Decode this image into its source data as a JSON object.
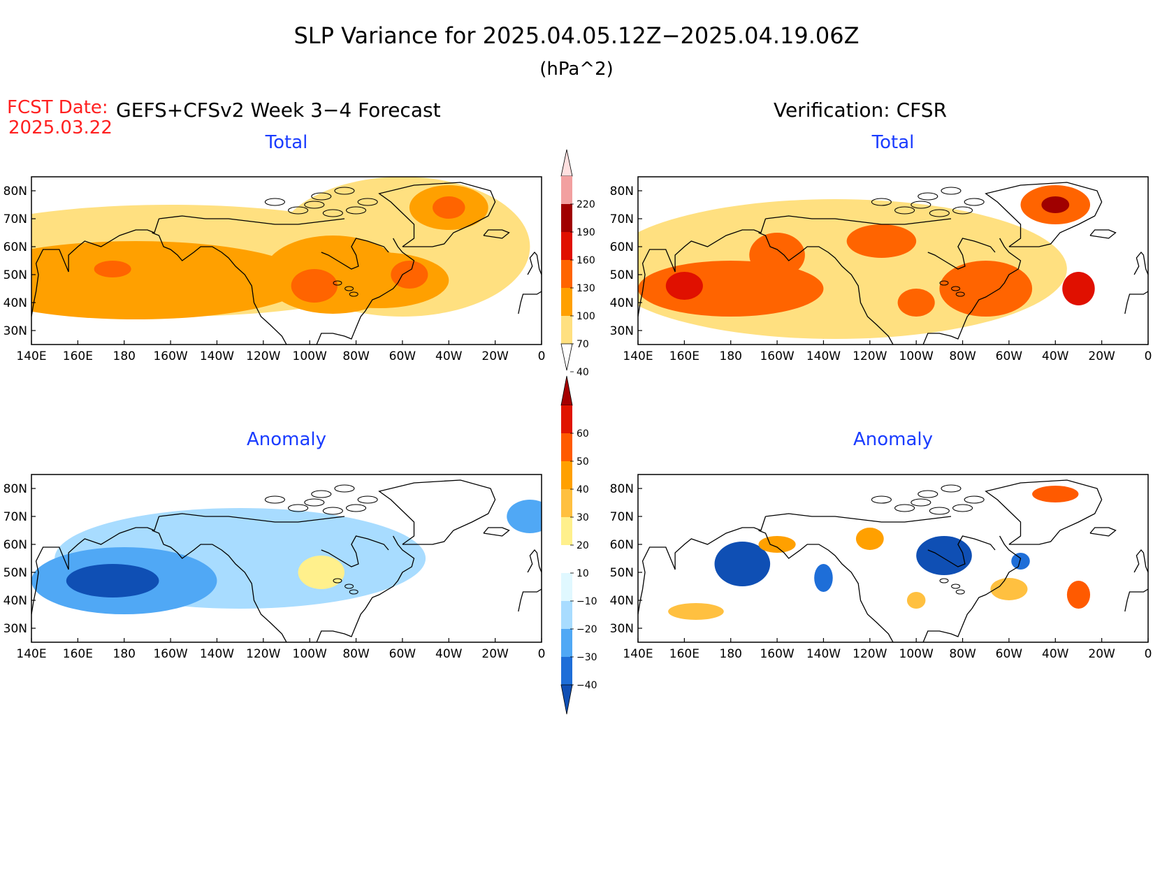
{
  "title": "SLP Variance for 2025.04.05.12Z−2025.04.19.06Z",
  "units": "(hPa^2)",
  "fcst_label": "FCST Date:",
  "fcst_date": "2025.03.22",
  "left_header": "GEFS+CFSv2 Week 3−4 Forecast",
  "right_header": "Verification: CFSR",
  "lon_labels": [
    "140E",
    "160E",
    "180",
    "160W",
    "140W",
    "120W",
    "100W",
    "80W",
    "60W",
    "40W",
    "20W",
    "0"
  ],
  "lat_labels": [
    "80N",
    "70N",
    "60N",
    "50N",
    "40N",
    "30N"
  ],
  "panels": [
    {
      "title": "Total",
      "scale": "total",
      "blobs": [
        {
          "lon": 185,
          "lat": 48,
          "rlon": 75,
          "rlat": 14,
          "v": 72
        },
        {
          "lon": 180,
          "lat": 50,
          "rlon": 45,
          "rlat": 8,
          "v": 90
        },
        {
          "lon": 175,
          "lat": 52,
          "rlon": 8,
          "rlat": 3,
          "v": 102
        },
        {
          "lon": 270,
          "lat": 50,
          "rlon": 30,
          "rlat": 14,
          "v": 78
        },
        {
          "lon": 262,
          "lat": 46,
          "rlon": 10,
          "rlat": 6,
          "v": 102
        },
        {
          "lon": 290,
          "lat": 48,
          "rlon": 30,
          "rlat": 10,
          "v": 76
        },
        {
          "lon": 303,
          "lat": 50,
          "rlon": 8,
          "rlat": 5,
          "v": 100
        },
        {
          "lon": 320,
          "lat": 74,
          "rlon": 17,
          "rlat": 8,
          "v": 82
        },
        {
          "lon": 320,
          "lat": 74,
          "rlon": 7,
          "rlat": 4,
          "v": 112
        },
        {
          "lon": 200,
          "lat": 55,
          "rlon": 110,
          "rlat": 20,
          "v": 44
        },
        {
          "lon": 300,
          "lat": 60,
          "rlon": 55,
          "rlat": 25,
          "v": 44
        }
      ]
    },
    {
      "title": "Total",
      "scale": "total",
      "blobs": [
        {
          "lon": 180,
          "lat": 45,
          "rlon": 40,
          "rlat": 10,
          "v": 100
        },
        {
          "lon": 160,
          "lat": 46,
          "rlon": 8,
          "rlat": 5,
          "v": 130
        },
        {
          "lon": 200,
          "lat": 57,
          "rlon": 12,
          "rlat": 8,
          "v": 110
        },
        {
          "lon": 245,
          "lat": 62,
          "rlon": 15,
          "rlat": 6,
          "v": 100
        },
        {
          "lon": 320,
          "lat": 75,
          "rlon": 15,
          "rlat": 7,
          "v": 108
        },
        {
          "lon": 320,
          "lat": 75,
          "rlon": 6,
          "rlat": 3,
          "v": 160
        },
        {
          "lon": 290,
          "lat": 45,
          "rlon": 20,
          "rlat": 10,
          "v": 110
        },
        {
          "lon": 330,
          "lat": 45,
          "rlon": 7,
          "rlat": 6,
          "v": 135
        },
        {
          "lon": 260,
          "lat": 40,
          "rlon": 8,
          "rlat": 5,
          "v": 110
        },
        {
          "lon": 225,
          "lat": 52,
          "rlon": 100,
          "rlat": 25,
          "v": 44
        }
      ]
    },
    {
      "title": "Anomaly",
      "scale": "anomaly",
      "blobs": [
        {
          "lon": 180,
          "lat": 47,
          "rlon": 40,
          "rlat": 12,
          "v": -25
        },
        {
          "lon": 175,
          "lat": 47,
          "rlon": 20,
          "rlat": 6,
          "v": -42
        },
        {
          "lon": 265,
          "lat": 50,
          "rlon": 10,
          "rlat": 6,
          "v": 23
        },
        {
          "lon": 320,
          "lat": 74,
          "rlon": 5,
          "rlat": 2,
          "v": 12
        },
        {
          "lon": 355,
          "lat": 70,
          "rlon": 10,
          "rlat": 6,
          "v": -22
        },
        {
          "lon": 230,
          "lat": 55,
          "rlon": 80,
          "rlat": 18,
          "v": -12
        }
      ]
    },
    {
      "title": "Anomaly",
      "scale": "anomaly",
      "blobs": [
        {
          "lon": 185,
          "lat": 53,
          "rlon": 12,
          "rlat": 8,
          "v": -44
        },
        {
          "lon": 272,
          "lat": 56,
          "rlon": 12,
          "rlat": 7,
          "v": -44
        },
        {
          "lon": 220,
          "lat": 48,
          "rlon": 4,
          "rlat": 5,
          "v": -40
        },
        {
          "lon": 305,
          "lat": 54,
          "rlon": 4,
          "rlat": 3,
          "v": -40
        },
        {
          "lon": 320,
          "lat": 78,
          "rlon": 10,
          "rlat": 3,
          "v": 55
        },
        {
          "lon": 330,
          "lat": 42,
          "rlon": 5,
          "rlat": 5,
          "v": 55
        },
        {
          "lon": 240,
          "lat": 62,
          "rlon": 6,
          "rlat": 4,
          "v": 45
        },
        {
          "lon": 200,
          "lat": 60,
          "rlon": 8,
          "rlat": 3,
          "v": 45
        },
        {
          "lon": 300,
          "lat": 44,
          "rlon": 8,
          "rlat": 4,
          "v": 32
        },
        {
          "lon": 260,
          "lat": 40,
          "rlon": 4,
          "rlat": 3,
          "v": 30
        },
        {
          "lon": 165,
          "lat": 36,
          "rlon": 12,
          "rlat": 3,
          "v": 30
        }
      ]
    }
  ],
  "colorbar_total": {
    "levels": [
      "220",
      "190",
      "160",
      "130",
      "100",
      "70",
      "40"
    ],
    "colors": [
      "#ffe0e0",
      "#f2a0a0",
      "#a00000",
      "#e01000",
      "#ff6400",
      "#ffa000",
      "#ffe080",
      "#ffffff"
    ]
  },
  "colorbar_anomaly": {
    "levels": [
      "60",
      "50",
      "40",
      "30",
      "20",
      "10",
      "−10",
      "−20",
      "−30",
      "−40"
    ],
    "colors": [
      "#a50000",
      "#e01500",
      "#ff5a00",
      "#ffa000",
      "#ffc040",
      "#fff08c",
      "#ffffff",
      "#e0f8ff",
      "#a8dcff",
      "#50a8f5",
      "#1e6ed8",
      "#0f4fb4"
    ]
  }
}
